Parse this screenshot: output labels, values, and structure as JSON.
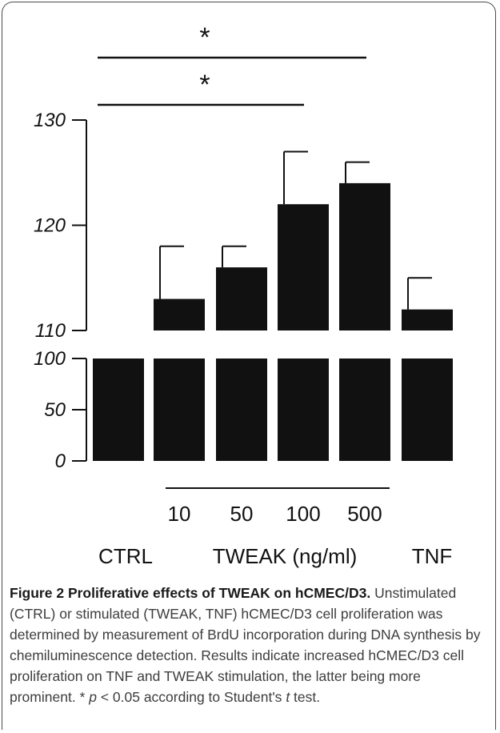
{
  "chart_data": {
    "type": "bar",
    "categories": [
      "CTRL",
      "10",
      "50",
      "100",
      "500",
      "TNF"
    ],
    "values": [
      100,
      113,
      116,
      122,
      124,
      112
    ],
    "errors": [
      0,
      5,
      2,
      5,
      2,
      3
    ],
    "yaxis_lower": {
      "ticks": [
        "0",
        "50",
        "100"
      ],
      "range": [
        0,
        100
      ]
    },
    "yaxis_upper": {
      "ticks": [
        "110",
        "120",
        "130"
      ],
      "range": [
        110,
        130
      ]
    },
    "axis_break": true,
    "group_labels": {
      "ctrl": "CTRL",
      "tweak": "TWEAK (ng/ml)",
      "tnf": "TNF"
    },
    "significance": [
      {
        "from": "CTRL",
        "to": "500",
        "marker": "*"
      },
      {
        "from": "CTRL",
        "to": "100",
        "marker": "*"
      }
    ],
    "bar_color": "#111111"
  },
  "caption": {
    "label": "Figure 2",
    "title": "Proliferative effects of TWEAK on hCMEC/D3.",
    "text_before_p": "Unstimulated (CTRL) or stimulated (TWEAK, TNF) hCMEC/D3 cell proliferation was determined by measurement of BrdU incorporation during DNA synthesis by chemiluminescence detection. Results indicate increased hCMEC/D3 cell proliferation on TNF and TWEAK stimulation, the latter being more prominent. * ",
    "p_symbol": "p",
    "text_mid": " < 0.05 according to Student's ",
    "t_symbol": "t",
    "text_end": " test."
  }
}
